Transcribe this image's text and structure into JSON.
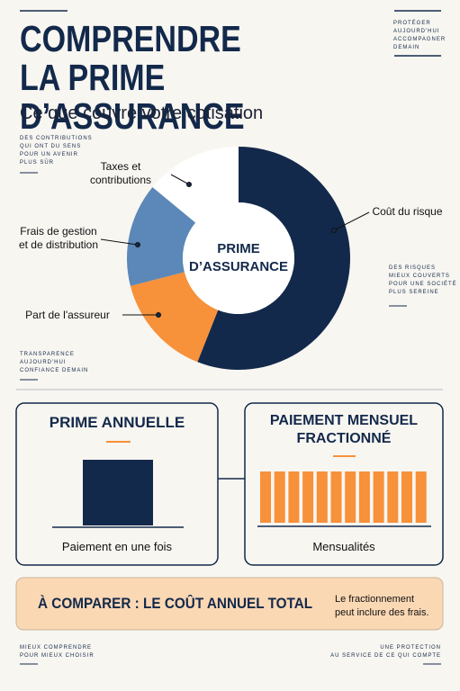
{
  "header": {
    "title": "COMPRENDRE\nLA PRIME D’ASSURANCE",
    "subtitle": "Ce que couvre votre cotisation",
    "tagline": "PROTÉGER\nAUJOURD'HUI\nACCOMPAGNER\nDEMAIN"
  },
  "side_notes": {
    "left_top": "DES CONTRIBUTIONS\nQUI ONT DU SENS\nPOUR UN AVENIR\nPLUS SÛR",
    "right": "DES RISQUES\nMIEUX COUVERTS\nPOUR UNE SOCIÉTÉ\nPLUS SEREINE",
    "left_bottom": "TRANSPARENCE\nAUJOURD'HUI\nCONFIANCE DEMAIN"
  },
  "chart_data": {
    "type": "pie",
    "donut": true,
    "center_label": "PRIME\nD’ASSURANCE",
    "categories": [
      "Coût du risque",
      "Part de l'assureur",
      "Frais de gestion\net de distribution",
      "Taxes et\ncontributions"
    ],
    "values": [
      56,
      15,
      15,
      14
    ],
    "colors": [
      "#13294b",
      "#f7913a",
      "#5b88b8",
      "#ffffff"
    ]
  },
  "comparison": {
    "annual": {
      "title": "PRIME ANNUELLE",
      "caption": "Paiement en une fois"
    },
    "monthly": {
      "title": "PAIEMENT MENSUEL\nFRACTIONNÉ",
      "caption": "Mensualités"
    }
  },
  "banner": {
    "text": "À COMPARER : LE COÛT ANNUEL TOTAL",
    "note": "Le fractionnement\npeut inclure des frais."
  },
  "footer": {
    "left": "MIEUX COMPRENDRE\nPOUR MIEUX CHOISIR",
    "right": "UNE PROTECTION\nAU SERVICE DE CE QUI COMPTE"
  }
}
